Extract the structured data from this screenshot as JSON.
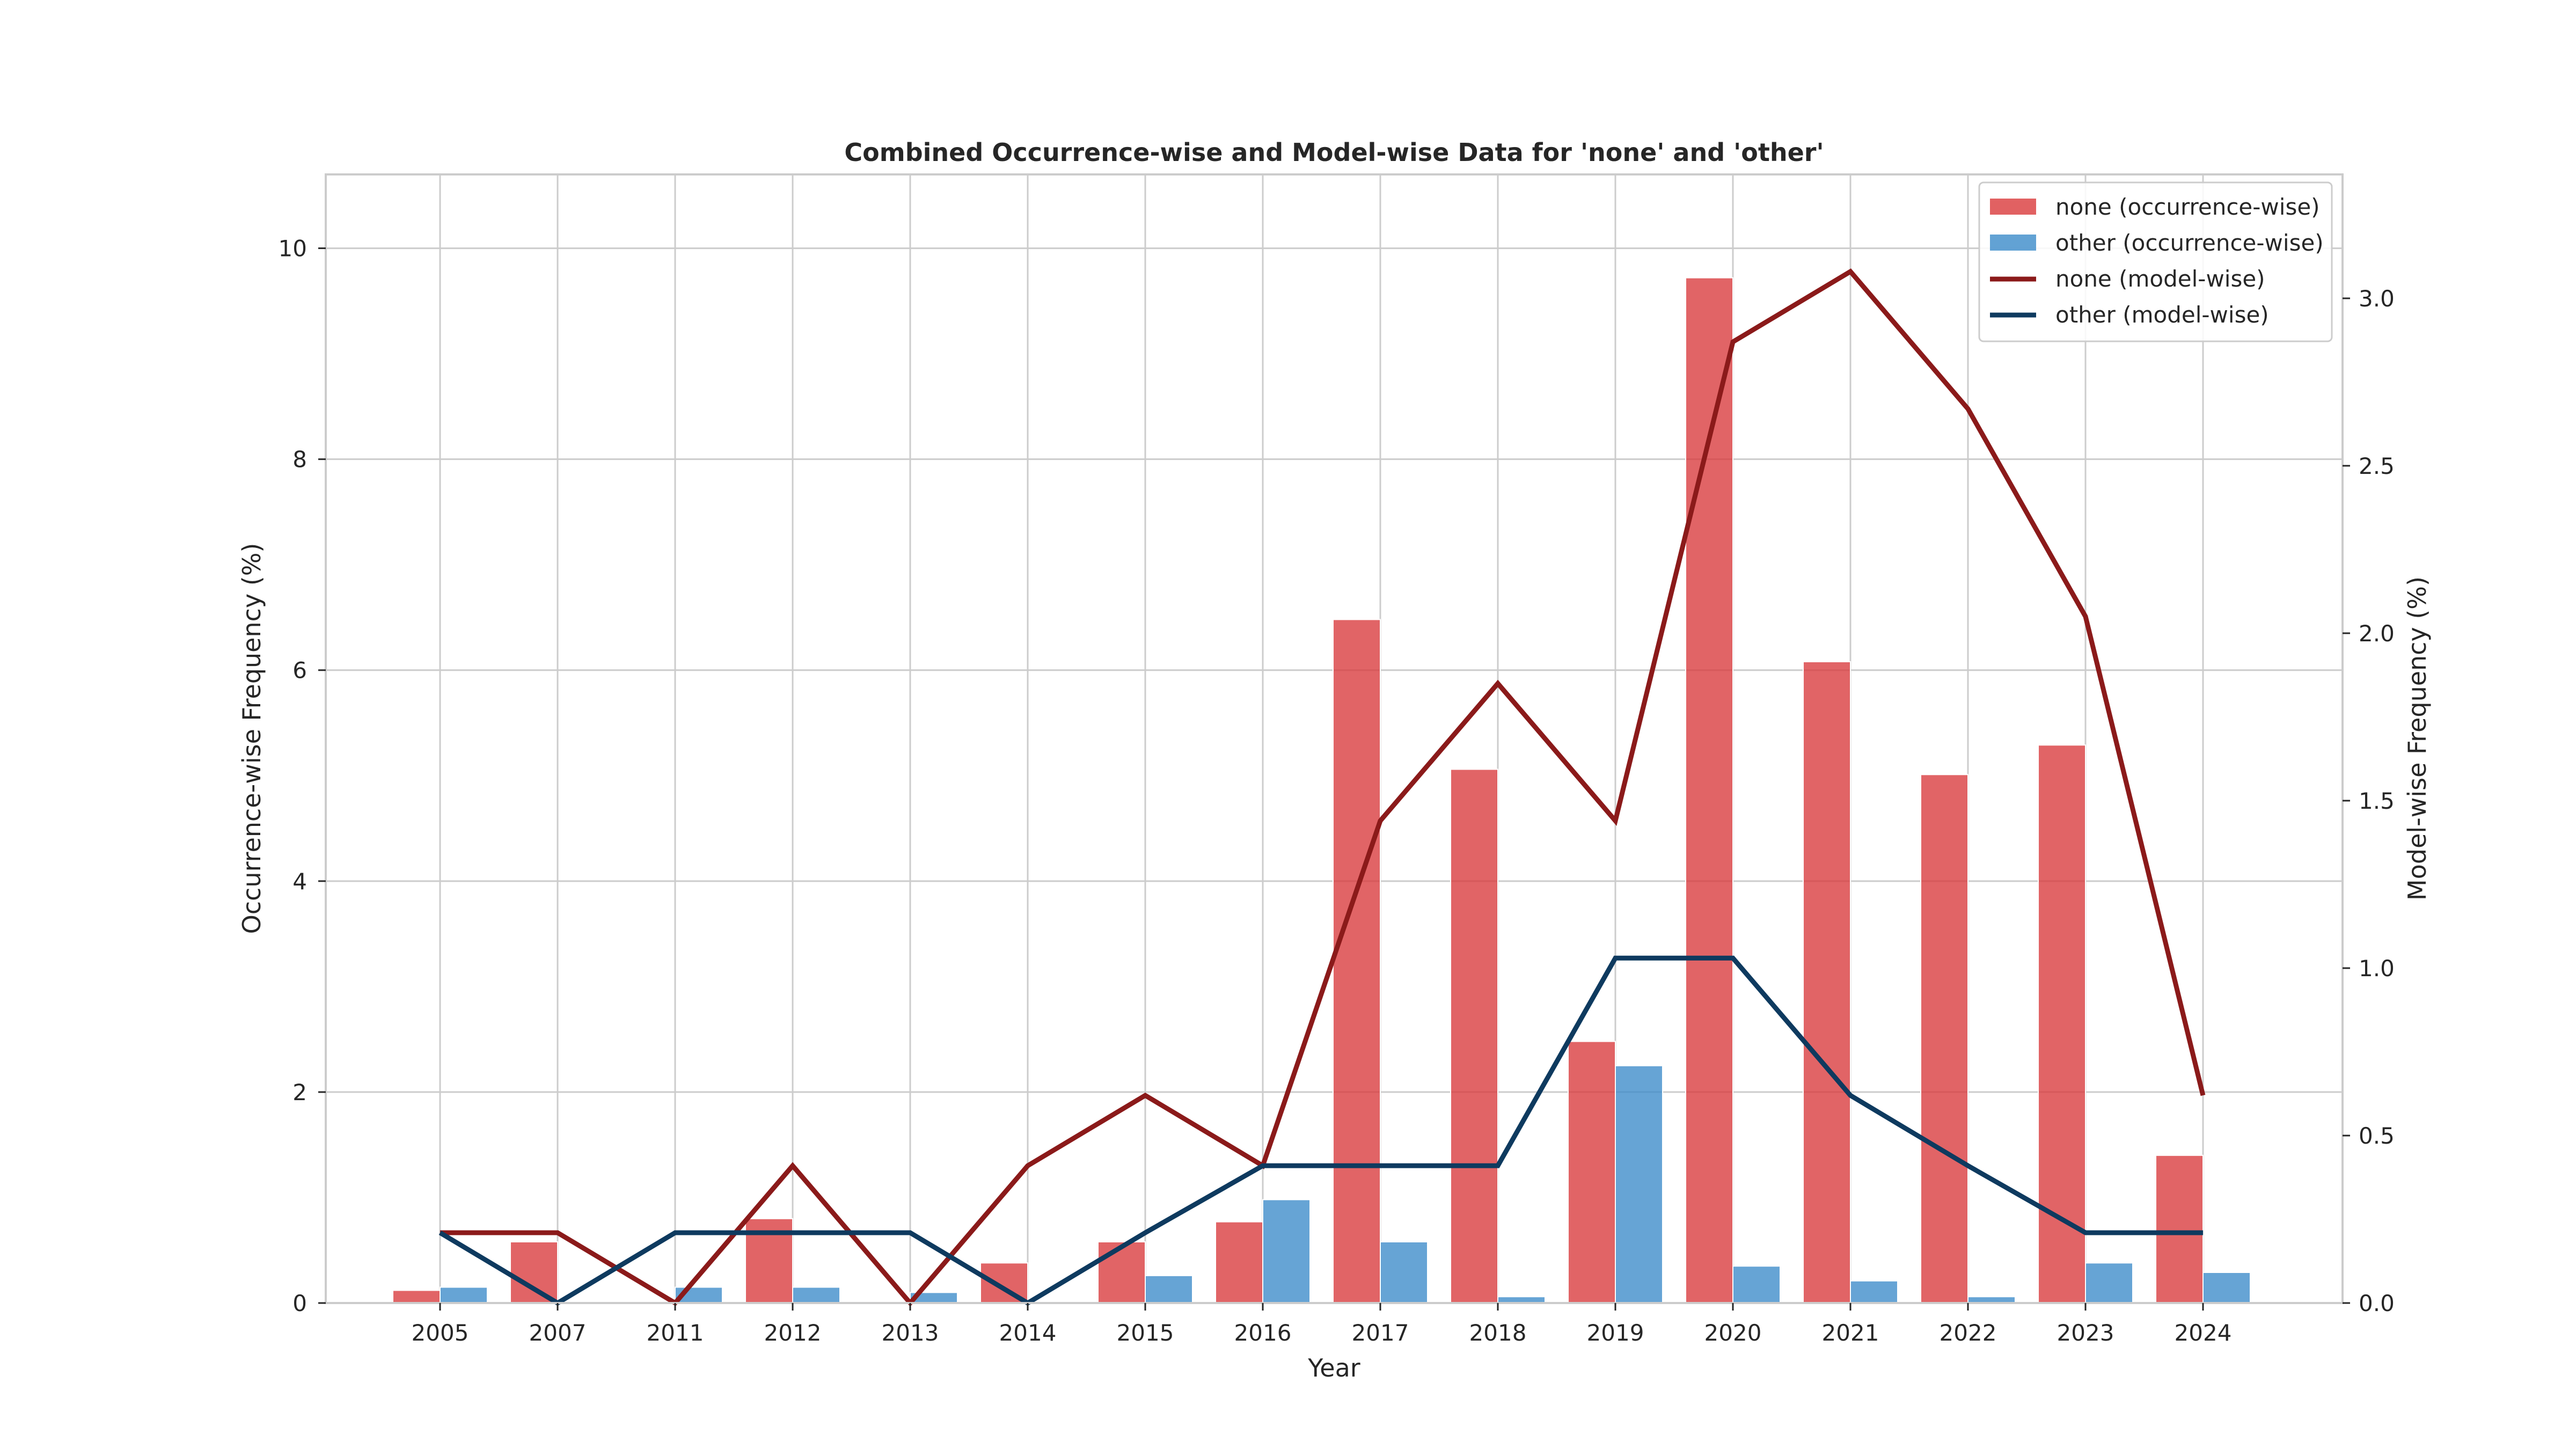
{
  "chart_data": {
    "type": "bar",
    "title": "Combined Occurrence-wise and Model-wise Data for 'none' and 'other'",
    "xlabel": "Year",
    "ylabel": "Occurrence-wise Frequency (%)",
    "y2label": "Model-wise Frequency (%)",
    "categories": [
      "2005",
      "2007",
      "2011",
      "2012",
      "2013",
      "2014",
      "2015",
      "2016",
      "2017",
      "2018",
      "2019",
      "2020",
      "2021",
      "2022",
      "2023",
      "2024"
    ],
    "ylim": [
      0,
      10.7
    ],
    "y2lim": [
      0,
      3.37
    ],
    "yticks": [
      0,
      2,
      4,
      6,
      8,
      10
    ],
    "y2ticks": [
      0.0,
      0.5,
      1.0,
      1.5,
      2.0,
      2.5,
      3.0
    ],
    "grid": true,
    "legend_position": "top-right",
    "bar_series": [
      {
        "name": "none (occurrence-wise)",
        "color": "#d9393b",
        "values": [
          0.12,
          0.58,
          0.0,
          0.8,
          0.0,
          0.38,
          0.58,
          0.77,
          6.48,
          5.06,
          2.48,
          9.72,
          6.08,
          5.01,
          5.29,
          1.4
        ]
      },
      {
        "name": "other (occurrence-wise)",
        "color": "#3b8bc9",
        "values": [
          0.15,
          0.0,
          0.15,
          0.15,
          0.1,
          0.0,
          0.26,
          0.98,
          0.58,
          0.06,
          2.25,
          0.35,
          0.21,
          0.06,
          0.38,
          0.29
        ]
      }
    ],
    "line_series": [
      {
        "name": "none (model-wise)",
        "color": "#8b1a1a",
        "values": [
          0.21,
          0.21,
          0.0,
          0.41,
          0.0,
          0.41,
          0.62,
          0.41,
          1.44,
          1.85,
          1.44,
          2.87,
          3.08,
          2.67,
          2.05,
          0.62
        ]
      },
      {
        "name": "other (model-wise)",
        "color": "#0e3a5f",
        "values": [
          0.21,
          0.0,
          0.21,
          0.21,
          0.21,
          0.0,
          0.21,
          0.41,
          0.41,
          0.41,
          1.03,
          1.03,
          0.62,
          0.41,
          0.21,
          0.21
        ]
      }
    ]
  }
}
